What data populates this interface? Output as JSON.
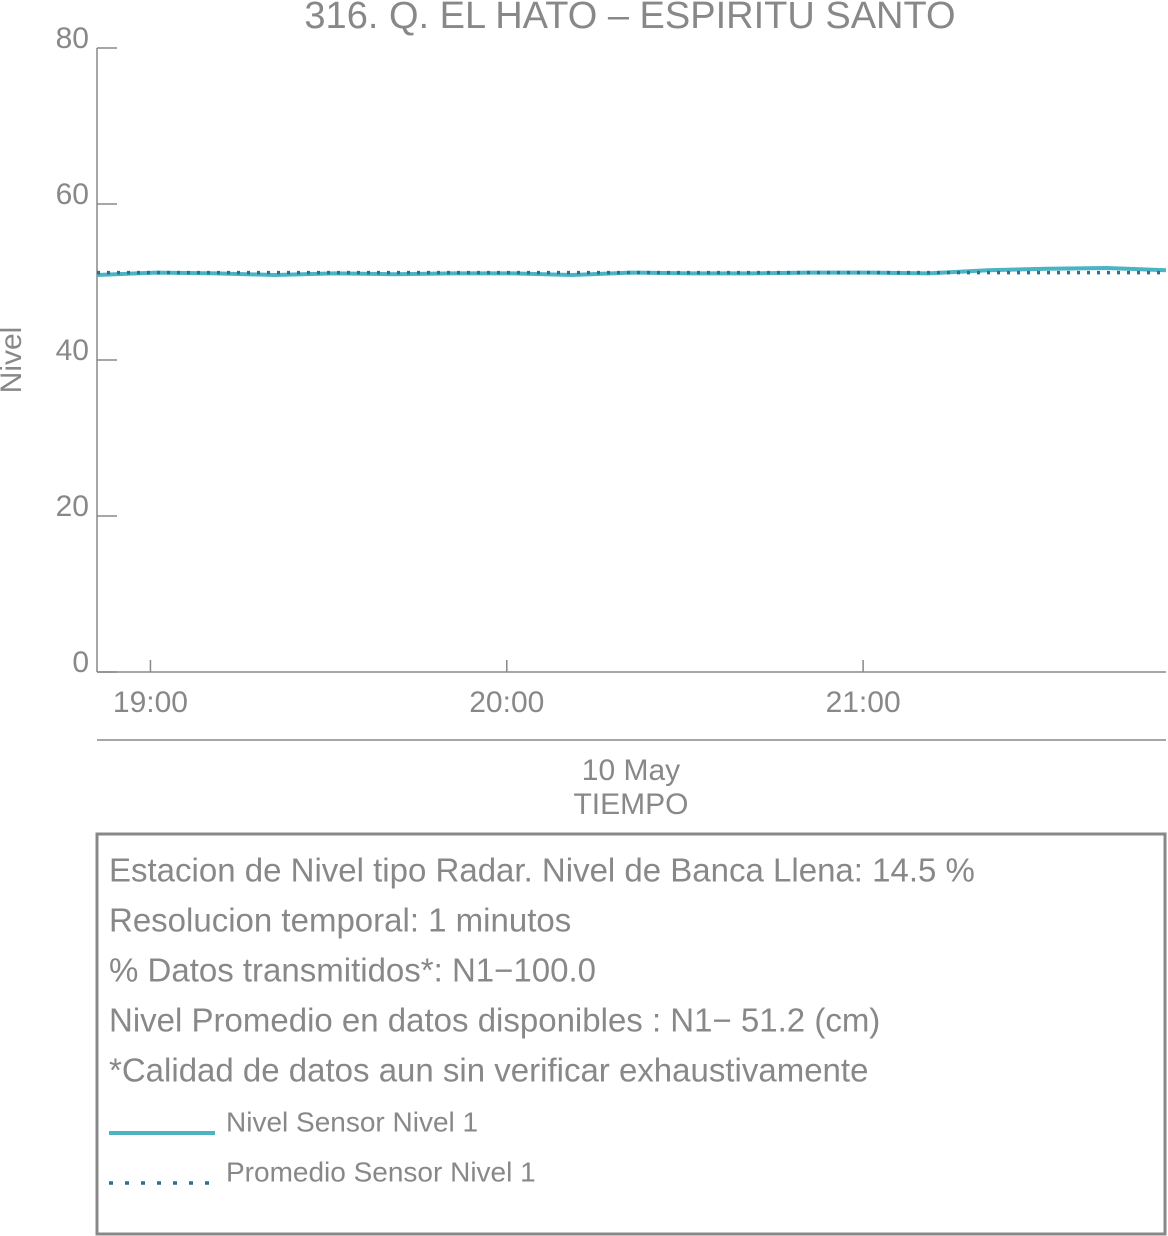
{
  "chart_data": {
    "type": "line",
    "title": "316. Q. EL HATO – ESPIRITU SANTO",
    "ylabel": "Nivel",
    "date_label": "10 May",
    "xlabel": "TIEMPO",
    "x": [
      "18:51",
      "19:01",
      "19:11",
      "19:21",
      "19:31",
      "19:41",
      "19:51",
      "20:01",
      "20:11",
      "20:21",
      "20:31",
      "20:41",
      "20:51",
      "21:01",
      "21:11",
      "21:21",
      "21:31",
      "21:41",
      "21:51"
    ],
    "xlim": [
      "18:51",
      "21:51"
    ],
    "xticks": [
      "19:00",
      "20:00",
      "21:00"
    ],
    "ylim": [
      0,
      80
    ],
    "yticks": [
      0,
      20,
      40,
      60,
      80
    ],
    "series": [
      {
        "name": "Nivel Sensor Nivel 1",
        "color": "#4ab4c4",
        "style": "solid",
        "values": [
          50.9,
          51.2,
          51.1,
          50.9,
          51.1,
          51.0,
          51.1,
          51.1,
          50.9,
          51.2,
          51.1,
          51.1,
          51.2,
          51.2,
          51.1,
          51.5,
          51.7,
          51.8,
          51.5
        ]
      },
      {
        "name": "Promedio Sensor Nivel 1",
        "color": "#2e6f8e",
        "style": "dotted",
        "values": [
          51.2,
          51.2,
          51.2,
          51.2,
          51.2,
          51.2,
          51.2,
          51.2,
          51.2,
          51.2,
          51.2,
          51.2,
          51.2,
          51.2,
          51.2,
          51.2,
          51.2,
          51.2,
          51.2
        ]
      }
    ],
    "info_lines": [
      "Estacion de Nivel tipo Radar. Nivel de Banca Llena: 14.5 %",
      "Resolucion temporal: 1 minutos",
      "% Datos transmitidos*: N1−100.0",
      "Nivel Promedio en datos disponibles : N1− 51.2 (cm)",
      "*Calidad de datos aun sin verificar exhaustivamente"
    ]
  }
}
